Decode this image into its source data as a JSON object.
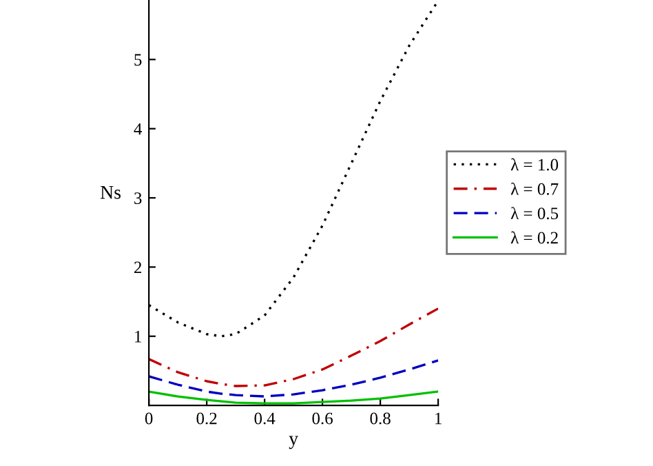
{
  "chart_data": {
    "type": "line",
    "xlabel": "y",
    "ylabel": "Ns",
    "x": [
      0,
      0.1,
      0.2,
      0.25,
      0.3,
      0.4,
      0.5,
      0.6,
      0.7,
      0.8,
      0.9,
      1.0
    ],
    "series": [
      {
        "name": "λ = 1.0",
        "color": "#000000",
        "line_style": "dotted",
        "values": [
          1.45,
          1.2,
          1.03,
          1.0,
          1.03,
          1.3,
          1.85,
          2.6,
          3.5,
          4.4,
          5.2,
          5.85
        ]
      },
      {
        "name": "λ = 0.7",
        "color": "#c00000",
        "line_style": "dashdot",
        "values": [
          0.67,
          0.48,
          0.35,
          0.31,
          0.28,
          0.29,
          0.38,
          0.52,
          0.72,
          0.93,
          1.17,
          1.4
        ]
      },
      {
        "name": "λ = 0.5",
        "color": "#0000c0",
        "line_style": "dashed",
        "values": [
          0.42,
          0.3,
          0.2,
          0.17,
          0.15,
          0.13,
          0.16,
          0.22,
          0.3,
          0.4,
          0.52,
          0.65
        ]
      },
      {
        "name": "λ = 0.2",
        "color": "#00c000",
        "line_style": "solid",
        "values": [
          0.2,
          0.13,
          0.08,
          0.06,
          0.04,
          0.03,
          0.03,
          0.05,
          0.07,
          0.1,
          0.15,
          0.2
        ]
      }
    ],
    "xlim": [
      0,
      1
    ],
    "ylim": [
      0,
      5.86
    ],
    "xticks": [
      0,
      0.2,
      0.4,
      0.6,
      0.8,
      1
    ],
    "yticks": [
      1,
      2,
      3,
      4,
      5
    ],
    "grid": false,
    "legend": "right"
  }
}
